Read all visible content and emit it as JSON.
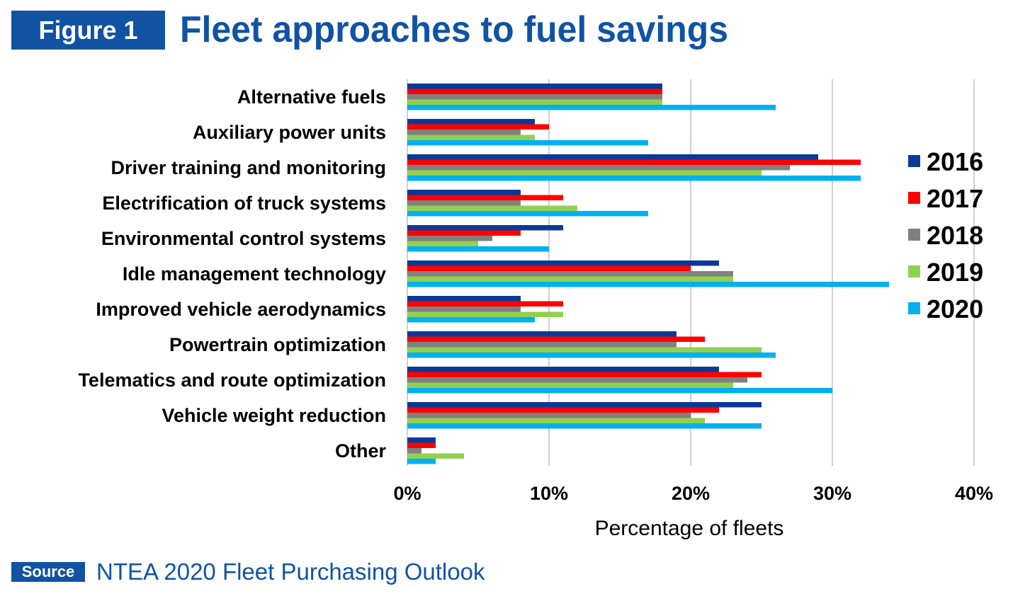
{
  "header": {
    "figure_label": "Figure 1",
    "title": "Fleet approaches to fuel savings"
  },
  "source": {
    "label": "Source",
    "text": "NTEA 2020 Fleet Purchasing Outlook"
  },
  "chart_data": {
    "type": "bar",
    "orientation": "horizontal",
    "title": "Fleet approaches to fuel savings",
    "xlabel": "Percentage of fleets",
    "ylabel": "",
    "xlim": [
      0,
      40
    ],
    "x_ticks": [
      "0%",
      "10%",
      "20%",
      "30%",
      "40%"
    ],
    "grid": "vertical",
    "legend_position": "right",
    "categories": [
      "Alternative fuels",
      "Auxiliary power units",
      "Driver training and monitoring",
      "Electrification of truck systems",
      "Environmental control systems",
      "Idle management technology",
      "Improved vehicle aerodynamics",
      "Powertrain optimization",
      "Telematics and route optimization",
      "Vehicle weight reduction",
      "Other"
    ],
    "series": [
      {
        "name": "2016",
        "color": "#0b3a96",
        "values": [
          18,
          9,
          29,
          8,
          11,
          22,
          8,
          19,
          22,
          25,
          2
        ]
      },
      {
        "name": "2017",
        "color": "#ff0000",
        "values": [
          18,
          10,
          32,
          11,
          8,
          20,
          11,
          21,
          25,
          22,
          2
        ]
      },
      {
        "name": "2018",
        "color": "#808080",
        "values": [
          18,
          8,
          27,
          8,
          6,
          23,
          8,
          19,
          24,
          20,
          1
        ]
      },
      {
        "name": "2019",
        "color": "#92d050",
        "values": [
          18,
          9,
          25,
          12,
          5,
          23,
          11,
          25,
          23,
          21,
          4
        ]
      },
      {
        "name": "2020",
        "color": "#00b0f0",
        "values": [
          26,
          17,
          32,
          17,
          10,
          34,
          9,
          26,
          30,
          25,
          2
        ]
      }
    ]
  }
}
